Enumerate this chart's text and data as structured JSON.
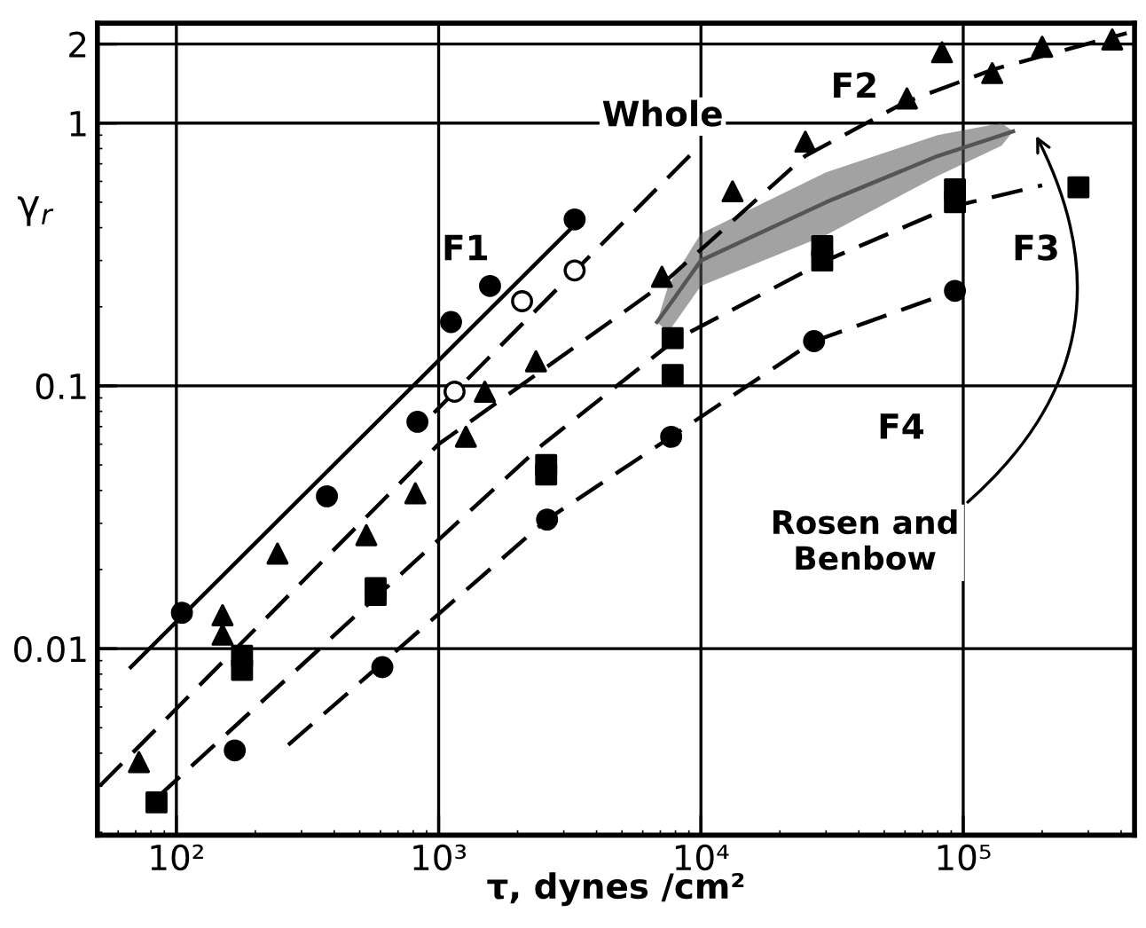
{
  "chart_data": {
    "type": "scatter",
    "xlabel": "τ, dynes /cm²",
    "ylabel": "γ$_{r}$",
    "log": "xy",
    "grid": true,
    "xlim": [
      50,
      450000
    ],
    "ylim": [
      0.00195,
      2.4
    ],
    "xticks": [
      {
        "value": 100,
        "label": "10²"
      },
      {
        "value": 1000,
        "label": "10³"
      },
      {
        "value": 10000,
        "label": "10⁴"
      },
      {
        "value": 100000,
        "label": "10⁵"
      }
    ],
    "yticks": [
      0.01,
      0.1,
      1,
      2
    ],
    "series": [
      {
        "marker": "circle",
        "color": "#000000",
        "x": [
          105,
          375,
          830,
          1115,
          1570,
          3300
        ],
        "values": [
          0.0137,
          0.038,
          0.073,
          0.175,
          0.24,
          0.43
        ]
      },
      {
        "marker": "circle",
        "color": "#ffffff",
        "x": [
          1150,
          2080,
          3300
        ],
        "values": [
          0.095,
          0.21,
          0.275
        ]
      },
      {
        "marker": "triangle",
        "color": "#000000",
        "x": [
          72,
          150,
          150,
          243,
          530,
          815,
          1270,
          1500,
          2350,
          7100,
          13200,
          25000,
          61000,
          83000,
          129000,
          200000,
          370000
        ],
        "values": [
          0.0037,
          0.0134,
          0.0113,
          0.023,
          0.027,
          0.039,
          0.064,
          0.095,
          0.124,
          0.26,
          0.55,
          0.85,
          1.24,
          1.86,
          1.55,
          1.95,
          2.08
        ]
      },
      {
        "marker": "square",
        "color": "#000000",
        "x": [
          84,
          178,
          178,
          575,
          575,
          2570,
          2570,
          7800,
          7800,
          29000,
          29000,
          93000,
          93000,
          275000
        ],
        "values": [
          0.0026,
          0.0094,
          0.0083,
          0.016,
          0.017,
          0.05,
          0.046,
          0.11,
          0.152,
          0.34,
          0.3,
          0.56,
          0.5,
          0.57
        ]
      },
      {
        "marker": "circle",
        "color": "#000000",
        "x": [
          167,
          610,
          2590,
          7700,
          27000,
          93000
        ],
        "values": [
          0.0041,
          0.0085,
          0.031,
          0.064,
          0.148,
          0.23
        ]
      },
      {
        "type": "line",
        "line_style": "solid",
        "color": "#000000",
        "x": [
          67,
          3300
        ],
        "values": [
          0.0085,
          0.41
        ]
      },
      {
        "type": "line",
        "line_style": "dashed",
        "color": "#000000",
        "x": [
          960,
          10000
        ],
        "values": [
          0.079,
          0.83
        ]
      },
      {
        "type": "line",
        "line_style": "dashed",
        "color": "#000000",
        "x": [
          51,
          1000,
          7000,
          25000,
          60000,
          130000,
          420000
        ],
        "values": [
          0.003,
          0.06,
          0.24,
          0.75,
          1.2,
          1.6,
          2.2
        ]
      },
      {
        "type": "line",
        "line_style": "dashed",
        "color": "#000000",
        "x": [
          84,
          2500,
          8000,
          30000,
          90000,
          200000
        ],
        "values": [
          0.0027,
          0.06,
          0.15,
          0.3,
          0.48,
          0.58
        ]
      },
      {
        "type": "line",
        "line_style": "dashed",
        "color": "#000000",
        "x": [
          267,
          2590,
          7700,
          27000,
          93000
        ],
        "values": [
          0.0043,
          0.031,
          0.064,
          0.148,
          0.23
        ]
      },
      {
        "type": "line",
        "line_style": "solid",
        "color": "#555555",
        "x": [
          6800,
          7500,
          10000,
          30000,
          80000,
          140000,
          155000
        ],
        "values": [
          0.175,
          0.2,
          0.3,
          0.5,
          0.75,
          0.9,
          0.93
        ],
        "upper": [
          0.175,
          0.24,
          0.38,
          0.65,
          0.9,
          1.0,
          0.93
        ],
        "lower": [
          0.175,
          0.16,
          0.24,
          0.375,
          0.63,
          0.82,
          0.93
        ]
      }
    ],
    "annotations": [
      "F1",
      "Whole",
      "F2",
      "F3",
      "F4",
      "Rosen and\nBenbow"
    ]
  }
}
